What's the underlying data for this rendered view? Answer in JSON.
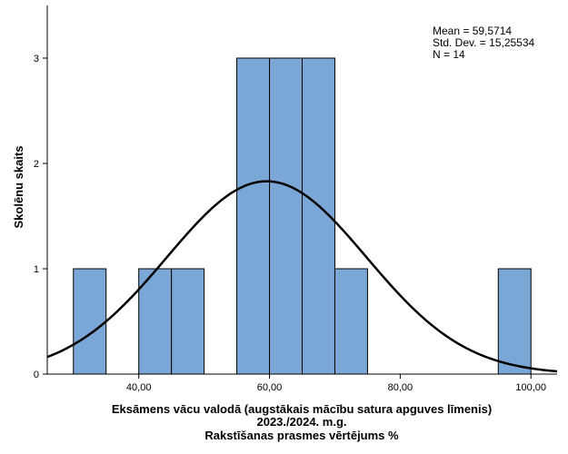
{
  "chart_data": {
    "type": "bar",
    "subtype": "histogram",
    "bins": [
      {
        "start": 30,
        "end": 35,
        "count": 1
      },
      {
        "start": 35,
        "end": 40,
        "count": 0
      },
      {
        "start": 40,
        "end": 45,
        "count": 1
      },
      {
        "start": 45,
        "end": 50,
        "count": 1
      },
      {
        "start": 50,
        "end": 55,
        "count": 0
      },
      {
        "start": 55,
        "end": 60,
        "count": 3
      },
      {
        "start": 60,
        "end": 65,
        "count": 3
      },
      {
        "start": 65,
        "end": 70,
        "count": 3
      },
      {
        "start": 70,
        "end": 75,
        "count": 1
      },
      {
        "start": 75,
        "end": 80,
        "count": 0
      },
      {
        "start": 80,
        "end": 85,
        "count": 0
      },
      {
        "start": 85,
        "end": 90,
        "count": 0
      },
      {
        "start": 90,
        "end": 95,
        "count": 0
      },
      {
        "start": 95,
        "end": 100,
        "count": 1
      }
    ],
    "normal_curve": {
      "mean": 59.5714,
      "sd": 15.25534,
      "n": 14,
      "bin_width": 5
    },
    "stats_lines": [
      "Mean = 59,5714",
      "Std. Dev. = 15,25534",
      "N = 14"
    ],
    "xlabel_lines": [
      "Eksāmens vācu valodā (augstākais mācību satura apguves līmenis)",
      "2023./2024. m.g.",
      "Rakstīšanas prasmes vērtējums %"
    ],
    "ylabel": "Skolēnu skaits",
    "xlim": [
      26,
      104
    ],
    "ylim": [
      0,
      3.5
    ],
    "x_ticks": [
      40,
      60,
      80,
      100
    ],
    "x_tick_labels": [
      "40,00",
      "60,00",
      "80,00",
      "100,00"
    ],
    "y_ticks": [
      0,
      1,
      2,
      3
    ],
    "y_tick_labels": [
      "0",
      "1",
      "2",
      "3"
    ],
    "grid": false,
    "colors": {
      "bar_fill": "#7ba7d7",
      "bar_stroke": "#000000",
      "curve": "#000000",
      "axis": "#000000"
    }
  }
}
